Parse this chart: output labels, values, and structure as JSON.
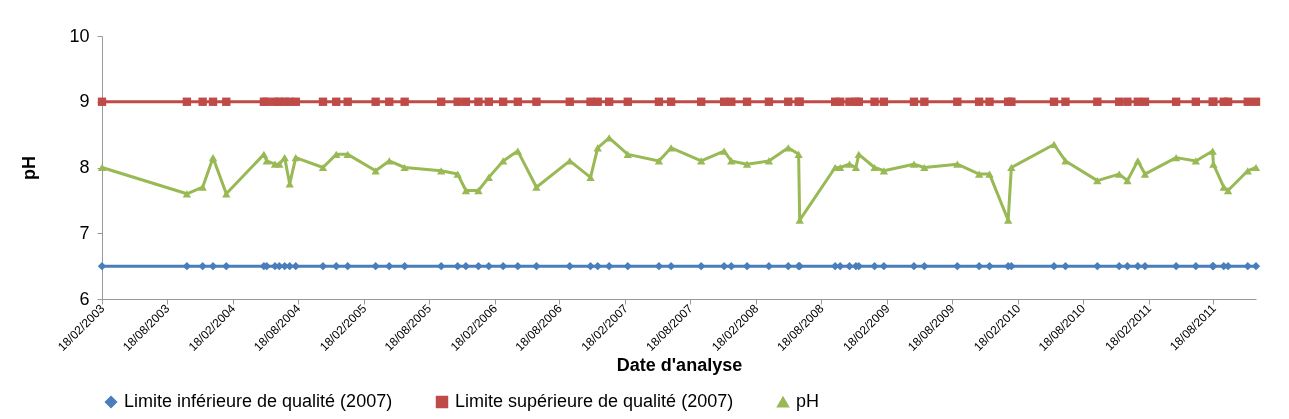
{
  "chart_data": {
    "type": "line",
    "xlabel": "Date d'analyse",
    "ylabel": "pH",
    "ylim": [
      6,
      10
    ],
    "yticks": [
      6,
      7,
      8,
      9,
      10
    ],
    "xlim": [
      "2003-02-18",
      "2011-12-15"
    ],
    "xticks": [
      {
        "value": "2003-02-18",
        "label": "18/02/2003"
      },
      {
        "value": "2003-08-18",
        "label": "18/08/2003"
      },
      {
        "value": "2004-02-18",
        "label": "18/02/2004"
      },
      {
        "value": "2004-08-18",
        "label": "18/08/2004"
      },
      {
        "value": "2005-02-18",
        "label": "18/02/2005"
      },
      {
        "value": "2005-08-18",
        "label": "18/08/2005"
      },
      {
        "value": "2006-02-18",
        "label": "18/02/2006"
      },
      {
        "value": "2006-08-18",
        "label": "18/08/2006"
      },
      {
        "value": "2007-02-18",
        "label": "18/02/2007"
      },
      {
        "value": "2007-08-18",
        "label": "18/08/2007"
      },
      {
        "value": "2008-02-18",
        "label": "18/02/2008"
      },
      {
        "value": "2008-08-18",
        "label": "18/08/2008"
      },
      {
        "value": "2009-02-18",
        "label": "18/02/2009"
      },
      {
        "value": "2009-08-18",
        "label": "18/08/2009"
      },
      {
        "value": "2010-02-18",
        "label": "18/02/2010"
      },
      {
        "value": "2010-08-18",
        "label": "18/08/2010"
      },
      {
        "value": "2011-02-18",
        "label": "18/02/2011"
      },
      {
        "value": "2011-08-18",
        "label": "18/08/2011"
      }
    ],
    "x": [
      "2003-02-18",
      "2003-10-13",
      "2003-11-26",
      "2003-12-25",
      "2004-01-31",
      "2004-05-15",
      "2004-05-23",
      "2004-06-15",
      "2004-06-27",
      "2004-07-12",
      "2004-07-26",
      "2004-08-12",
      "2004-10-27",
      "2004-12-03",
      "2005-01-04",
      "2005-03-23",
      "2005-04-30",
      "2005-06-12",
      "2005-09-22",
      "2005-11-07",
      "2005-11-30",
      "2006-01-04",
      "2006-02-02",
      "2006-03-14",
      "2006-04-24",
      "2006-06-15",
      "2006-09-16",
      "2006-11-13",
      "2006-12-03",
      "2007-01-04",
      "2007-02-25",
      "2007-05-23",
      "2007-06-26",
      "2007-09-18",
      "2007-11-21",
      "2007-12-11",
      "2008-01-24",
      "2008-03-25",
      "2008-05-18",
      "2008-06-16",
      "2008-06-19",
      "2008-09-26",
      "2008-10-10",
      "2008-11-05",
      "2008-11-23",
      "2008-12-01",
      "2009-01-14",
      "2009-02-09",
      "2009-05-04",
      "2009-06-02",
      "2009-09-02",
      "2009-11-02",
      "2009-12-01",
      "2010-01-22",
      "2010-01-31",
      "2010-05-30",
      "2010-07-01",
      "2010-09-28",
      "2010-11-28",
      "2010-12-21",
      "2011-01-19",
      "2011-02-08",
      "2011-05-06",
      "2011-06-30",
      "2011-08-16",
      "2011-08-18",
      "2011-09-16",
      "2011-09-28",
      "2011-11-22",
      "2011-12-15"
    ],
    "series": [
      {
        "name": "Limite inférieure de qualité (2007)",
        "color": "#4a7ebb",
        "marker": "diamond",
        "values": [
          6.5,
          6.5,
          6.5,
          6.5,
          6.5,
          6.5,
          6.5,
          6.5,
          6.5,
          6.5,
          6.5,
          6.5,
          6.5,
          6.5,
          6.5,
          6.5,
          6.5,
          6.5,
          6.5,
          6.5,
          6.5,
          6.5,
          6.5,
          6.5,
          6.5,
          6.5,
          6.5,
          6.5,
          6.5,
          6.5,
          6.5,
          6.5,
          6.5,
          6.5,
          6.5,
          6.5,
          6.5,
          6.5,
          6.5,
          6.5,
          6.5,
          6.5,
          6.5,
          6.5,
          6.5,
          6.5,
          6.5,
          6.5,
          6.5,
          6.5,
          6.5,
          6.5,
          6.5,
          6.5,
          6.5,
          6.5,
          6.5,
          6.5,
          6.5,
          6.5,
          6.5,
          6.5,
          6.5,
          6.5,
          6.5,
          6.5,
          6.5,
          6.5,
          6.5,
          6.5
        ]
      },
      {
        "name": "Limite supérieure de qualité (2007)",
        "color": "#be4b48",
        "marker": "square",
        "values": [
          9,
          9,
          9,
          9,
          9,
          9,
          9,
          9,
          9,
          9,
          9,
          9,
          9,
          9,
          9,
          9,
          9,
          9,
          9,
          9,
          9,
          9,
          9,
          9,
          9,
          9,
          9,
          9,
          9,
          9,
          9,
          9,
          9,
          9,
          9,
          9,
          9,
          9,
          9,
          9,
          9,
          9,
          9,
          9,
          9,
          9,
          9,
          9,
          9,
          9,
          9,
          9,
          9,
          9,
          9,
          9,
          9,
          9,
          9,
          9,
          9,
          9,
          9,
          9,
          9,
          9,
          9,
          9,
          9,
          9
        ]
      },
      {
        "name": "pH",
        "color": "#98b954",
        "marker": "triangle",
        "values": [
          8.0,
          7.6,
          7.7,
          8.15,
          7.6,
          8.2,
          8.1,
          8.05,
          8.05,
          8.15,
          7.75,
          8.15,
          8.0,
          8.2,
          8.2,
          7.95,
          8.1,
          8.0,
          7.95,
          7.9,
          7.65,
          7.65,
          7.85,
          8.1,
          8.25,
          7.7,
          8.1,
          7.85,
          8.3,
          8.45,
          8.2,
          8.1,
          8.3,
          8.1,
          8.25,
          8.1,
          8.05,
          8.1,
          8.3,
          8.2,
          7.2,
          8.0,
          8.0,
          8.05,
          8.0,
          8.2,
          8.0,
          7.95,
          8.05,
          8.0,
          8.05,
          7.9,
          7.9,
          7.2,
          8.0,
          8.35,
          8.1,
          7.8,
          7.9,
          7.8,
          8.1,
          7.9,
          8.15,
          8.1,
          8.25,
          8.05,
          7.7,
          7.65,
          7.95,
          8.0
        ]
      }
    ],
    "legend": "bottom",
    "line_style": "solid"
  }
}
